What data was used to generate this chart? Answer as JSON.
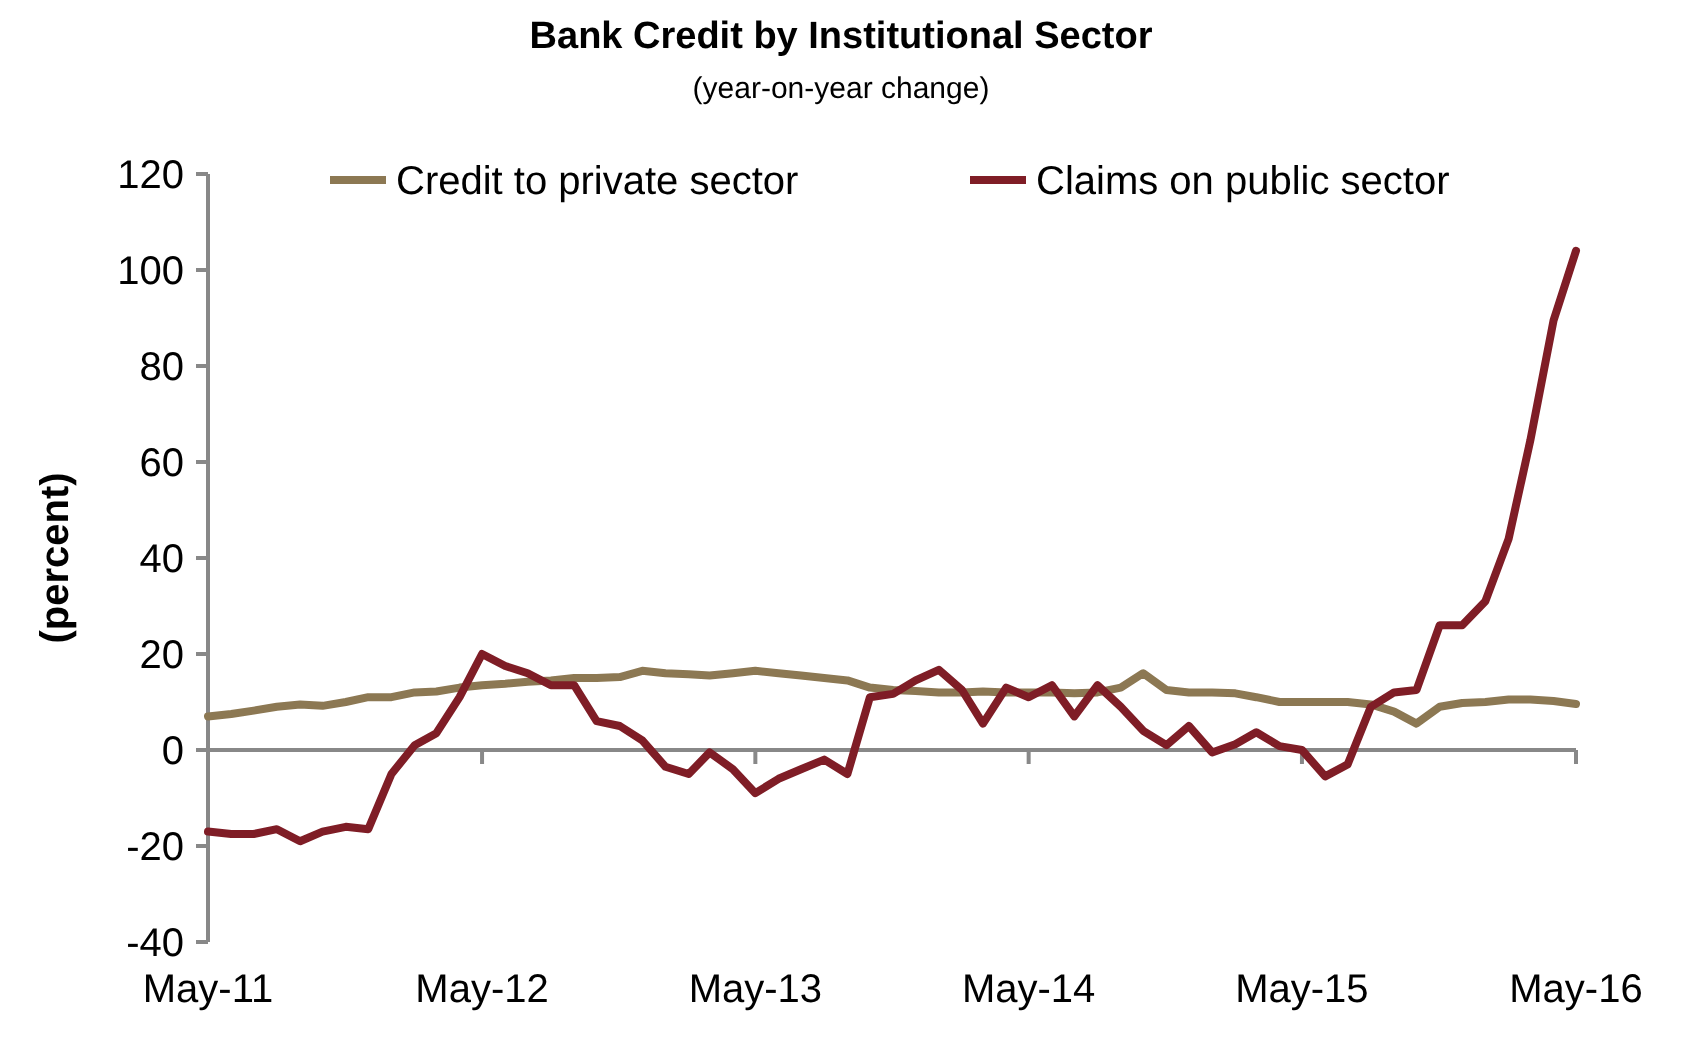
{
  "chart_data": {
    "type": "line",
    "title": "Bank Credit by Institutional Sector",
    "subtitle": "(year-on-year change)",
    "ylabel": "(percent)",
    "x": [
      "2011-05",
      "2011-06",
      "2011-07",
      "2011-08",
      "2011-09",
      "2011-10",
      "2011-11",
      "2011-12",
      "2012-01",
      "2012-02",
      "2012-03",
      "2012-04",
      "2012-05",
      "2012-06",
      "2012-07",
      "2012-08",
      "2012-09",
      "2012-10",
      "2012-11",
      "2012-12",
      "2013-01",
      "2013-02",
      "2013-03",
      "2013-04",
      "2013-05",
      "2013-06",
      "2013-07",
      "2013-08",
      "2013-09",
      "2013-10",
      "2013-11",
      "2013-12",
      "2014-01",
      "2014-02",
      "2014-03",
      "2014-04",
      "2014-05",
      "2014-06",
      "2014-07",
      "2014-08",
      "2014-09",
      "2014-10",
      "2014-11",
      "2014-12",
      "2015-01",
      "2015-02",
      "2015-03",
      "2015-04",
      "2015-05",
      "2015-06",
      "2015-07",
      "2015-08",
      "2015-09",
      "2015-10",
      "2015-11",
      "2015-12",
      "2016-01",
      "2016-02",
      "2016-03",
      "2016-04",
      "2016-05"
    ],
    "xlim": [
      "2011-05",
      "2016-05"
    ],
    "xticks": [
      {
        "value": "2011-05",
        "label": "May-11"
      },
      {
        "value": "2012-05",
        "label": "May-12"
      },
      {
        "value": "2013-05",
        "label": "May-13"
      },
      {
        "value": "2014-05",
        "label": "May-14"
      },
      {
        "value": "2015-05",
        "label": "May-15"
      },
      {
        "value": "2016-05",
        "label": "May-16"
      }
    ],
    "ylim": [
      -40,
      120
    ],
    "yticks": [
      -40,
      -20,
      0,
      20,
      40,
      60,
      80,
      100,
      120
    ],
    "legend": "top",
    "series": [
      {
        "name": "Credit to private sector",
        "color": "#8c7853",
        "values": [
          7,
          7.5,
          8.2,
          9,
          9.5,
          9.2,
          10,
          11,
          11,
          12,
          12.2,
          13,
          13.5,
          13.8,
          14.2,
          14.5,
          15,
          15,
          15.2,
          16.5,
          16,
          15.8,
          15.5,
          16,
          16.5,
          16,
          15.5,
          15,
          14.5,
          13,
          12.5,
          12.3,
          12,
          12,
          12.2,
          12,
          12,
          12,
          11.8,
          12,
          13,
          16,
          12.5,
          12,
          12,
          11.8,
          11,
          10,
          10,
          10,
          10,
          9.5,
          8,
          5.5,
          9,
          9.8,
          10,
          10.5,
          10.5,
          10.2,
          9.6
        ]
      },
      {
        "name": "Claims on public sector",
        "color": "#7f1d26",
        "values": [
          -17,
          -17.5,
          -17.5,
          -16.5,
          -19,
          -17,
          -16,
          -16.5,
          -5,
          1,
          3.5,
          11,
          20,
          17.5,
          16,
          13.5,
          13.5,
          6,
          5,
          2,
          -3.5,
          -5,
          -0.5,
          -4,
          -9,
          -6,
          -4,
          -2,
          -5,
          11,
          11.7,
          14.5,
          16.7,
          12.5,
          5.5,
          13,
          11,
          13.5,
          7,
          13.5,
          9,
          4,
          1,
          5,
          -0.5,
          1.2,
          3.7,
          0.8,
          0,
          -5.5,
          -3,
          9,
          12,
          12.5,
          26,
          26,
          31,
          44,
          64.5,
          89.5,
          104
        ]
      }
    ]
  }
}
